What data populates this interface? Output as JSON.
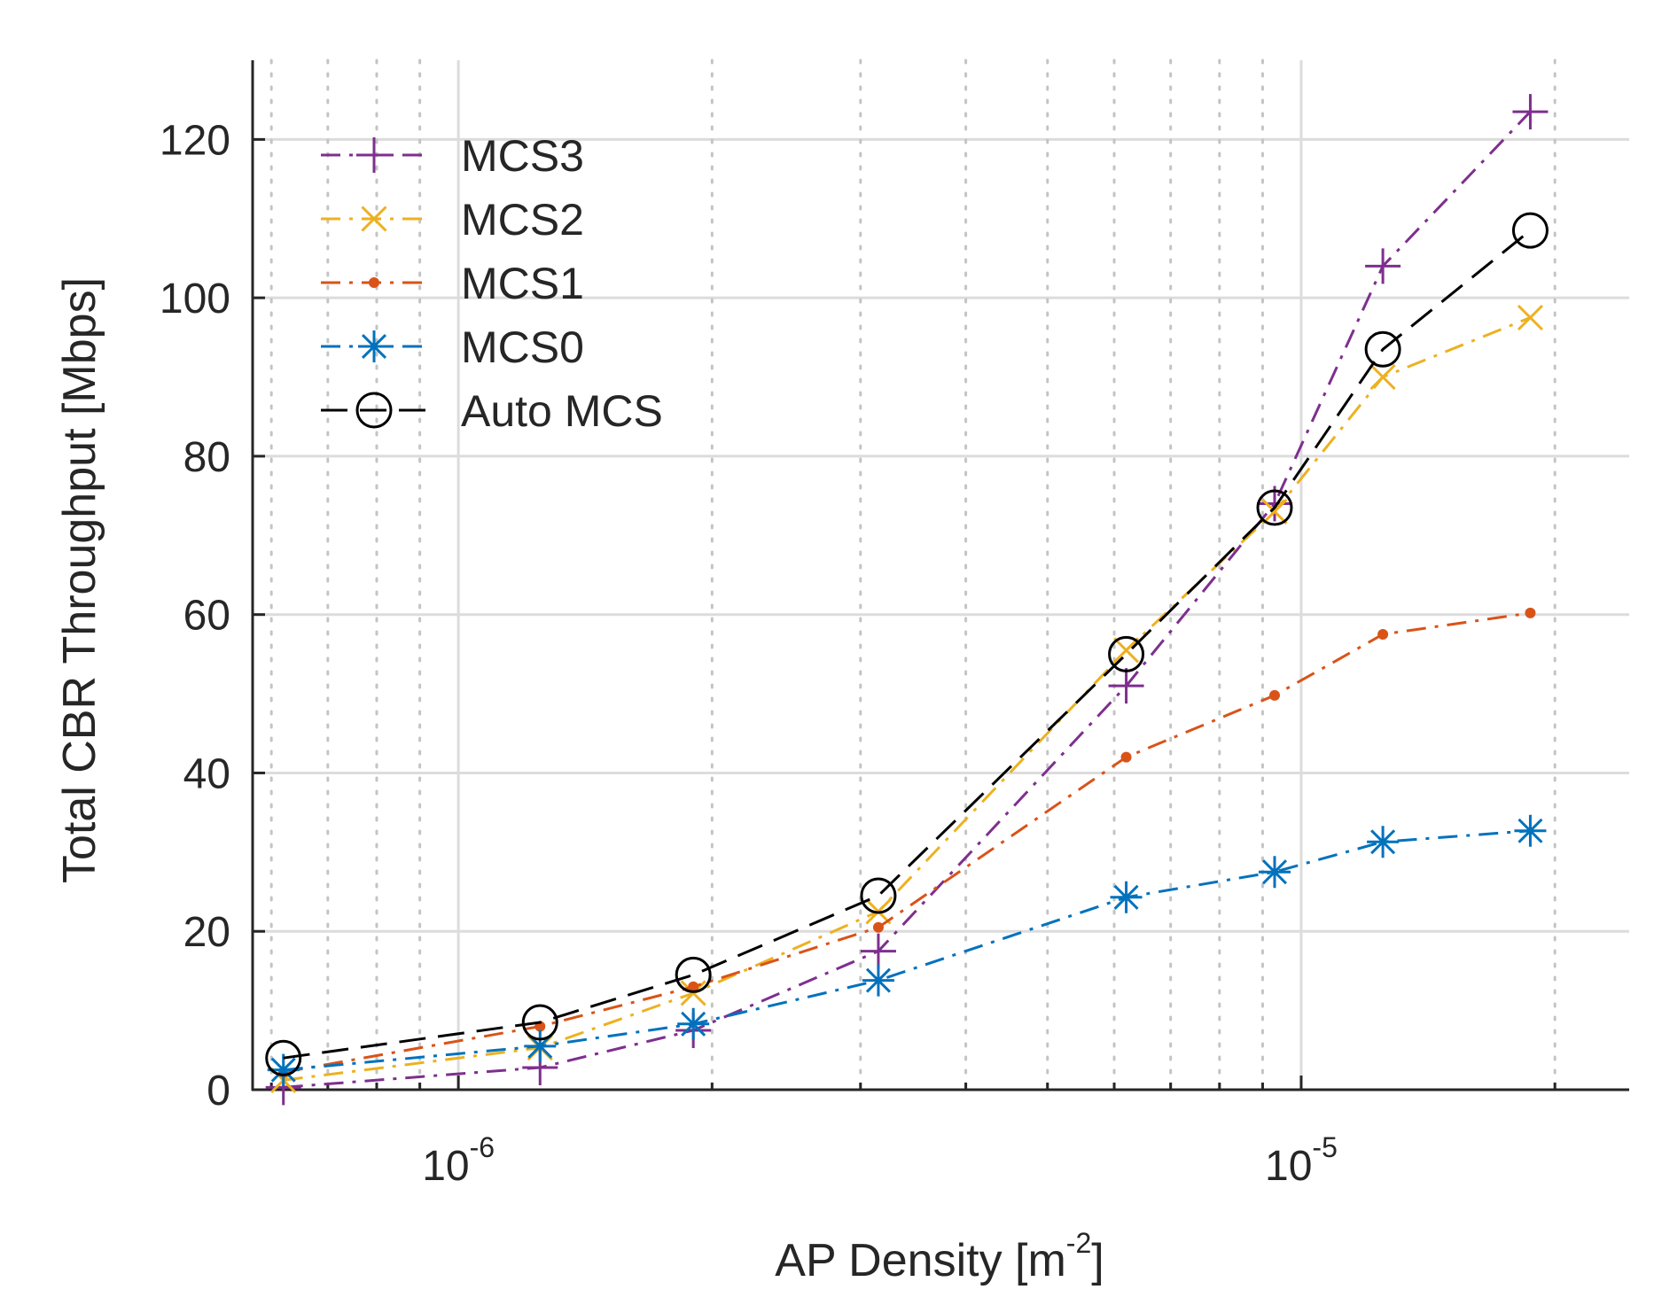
{
  "chart_data": {
    "type": "line",
    "title": "",
    "xlabel": "AP Density [m",
    "xlabel_exp": "-2",
    "xlabel_close": "]",
    "ylabel": "Total CBR Throughput [Mbps]",
    "xscale": "log",
    "xlim": [
      5.7e-07,
      2.45e-05
    ],
    "ylim": [
      0,
      130
    ],
    "yticks": [
      0,
      20,
      40,
      60,
      80,
      100,
      120
    ],
    "xticks_major": [
      {
        "value": 1e-06,
        "base": "10",
        "exp": "-6"
      },
      {
        "value": 1e-05,
        "base": "10",
        "exp": "-5"
      }
    ],
    "grid": true,
    "legend_position": "top-left",
    "x": [
      6.2e-07,
      1.25e-06,
      1.9e-06,
      3.15e-06,
      6.2e-06,
      9.3e-06,
      1.25e-05,
      1.87e-05
    ],
    "series": [
      {
        "name": "MCS3",
        "color": "#7E2F8E",
        "marker": "plus",
        "dash": "dashdot",
        "values": [
          0.3,
          2.8,
          7.5,
          17.5,
          51,
          74,
          104,
          123.5
        ]
      },
      {
        "name": "MCS2",
        "color": "#EDB120",
        "marker": "x",
        "dash": "dashdot",
        "values": [
          1.2,
          5.3,
          12.2,
          22.5,
          55.5,
          73,
          90,
          97.5
        ]
      },
      {
        "name": "MCS1",
        "color": "#D95319",
        "marker": "dot",
        "dash": "dashdot",
        "values": [
          2.2,
          8,
          13,
          20.5,
          42,
          49.8,
          57.5,
          60.2
        ]
      },
      {
        "name": "MCS0",
        "color": "#0072BD",
        "marker": "star",
        "dash": "dashdot",
        "values": [
          2.5,
          5.5,
          8.3,
          13.8,
          24.3,
          27.5,
          31.3,
          32.7
        ]
      },
      {
        "name": "Auto MCS",
        "color": "#000000",
        "marker": "circle",
        "dash": "dash",
        "values": [
          4,
          8.5,
          14.5,
          24.5,
          55,
          73.5,
          93.5,
          108.5
        ]
      }
    ]
  }
}
